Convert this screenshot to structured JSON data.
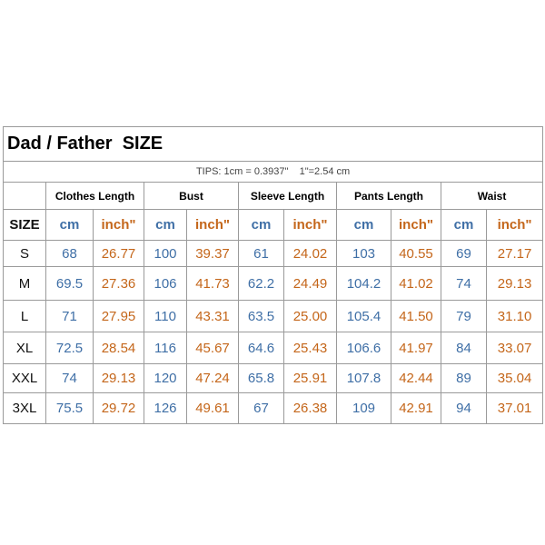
{
  "title": "Dad / Father  SIZE",
  "tips": "TIPS: 1cm = 0.3937\"    1\"=2.54 cm",
  "table": {
    "size_header": "SIZE",
    "groups": [
      "Clothes Length",
      "Bust",
      "Sleeve Length",
      "Pants Length",
      "Waist"
    ],
    "units": [
      "cm",
      "inch\"",
      "cm",
      "inch\"",
      "cm",
      "inch\"",
      "cm",
      "inch\"",
      "cm",
      "inch\""
    ],
    "rows": [
      [
        "S",
        "68",
        "26.77",
        "100",
        "39.37",
        "61",
        "24.02",
        "103",
        "40.55",
        "69",
        "27.17"
      ],
      [
        "M",
        "69.5",
        "27.36",
        "106",
        "41.73",
        "62.2",
        "24.49",
        "104.2",
        "41.02",
        "74",
        "29.13"
      ],
      [
        "L",
        "71",
        "27.95",
        "110",
        "43.31",
        "63.5",
        "25.00",
        "105.4",
        "41.50",
        "79",
        "31.10"
      ],
      [
        "XL",
        "72.5",
        "28.54",
        "116",
        "45.67",
        "64.6",
        "25.43",
        "106.6",
        "41.97",
        "84",
        "33.07"
      ],
      [
        "XXL",
        "74",
        "29.13",
        "120",
        "47.24",
        "65.8",
        "25.91",
        "107.8",
        "42.44",
        "89",
        "35.04"
      ],
      [
        "3XL",
        "75.5",
        "29.72",
        "126",
        "49.61",
        "67",
        "26.38",
        "109",
        "42.91",
        "94",
        "37.01"
      ]
    ]
  }
}
